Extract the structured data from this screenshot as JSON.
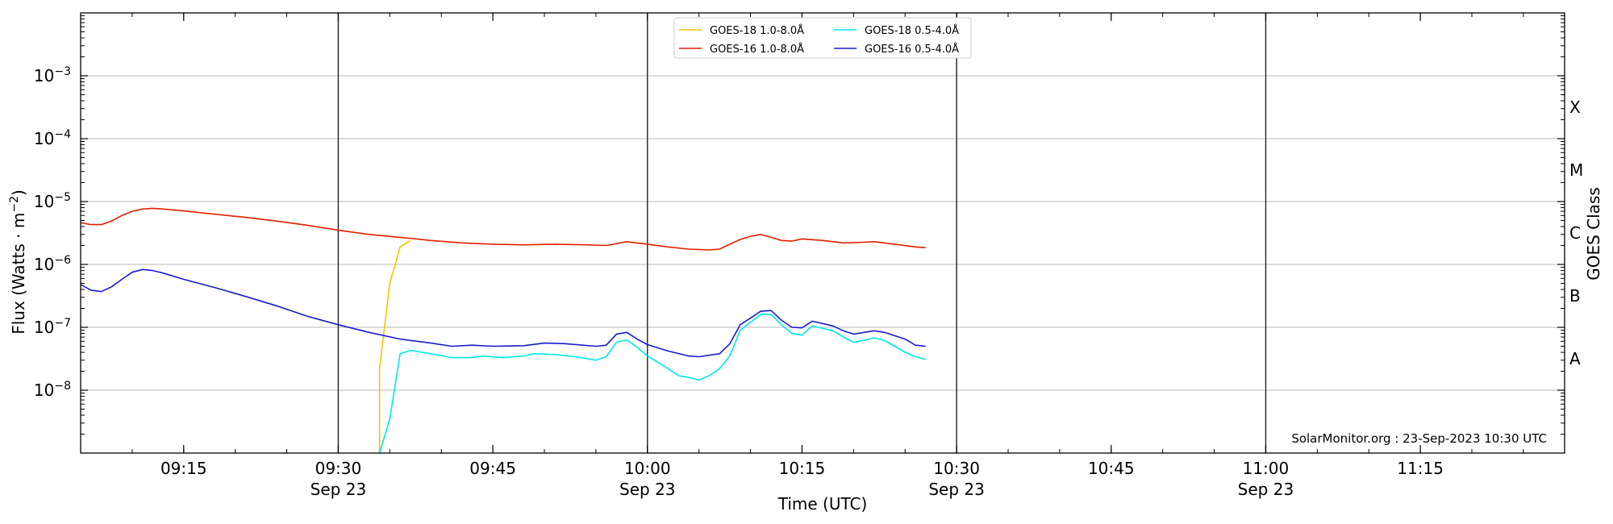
{
  "chart_data": {
    "type": "line",
    "title": "",
    "xlabel": "Time (UTC)",
    "ylabel": "Flux (Watts · m",
    "ylabel_exponent": "−2",
    "ylabel_suffix": ")",
    "y2label": "GOES Class",
    "yscale": "log",
    "ylim": [
      1e-09,
      0.01
    ],
    "xlim": [
      "09:05",
      "11:29"
    ],
    "yticks": [
      {
        "value": 1e-08,
        "mantissa": "10",
        "exp": "−8"
      },
      {
        "value": 1e-07,
        "mantissa": "10",
        "exp": "−7"
      },
      {
        "value": 1e-06,
        "mantissa": "10",
        "exp": "−6"
      },
      {
        "value": 1e-05,
        "mantissa": "10",
        "exp": "−5"
      },
      {
        "value": 0.0001,
        "mantissa": "10",
        "exp": "−4"
      },
      {
        "value": 0.001,
        "mantissa": "10",
        "exp": "−3"
      }
    ],
    "xticks": [
      {
        "time": "09:15",
        "label": "09:15",
        "date": ""
      },
      {
        "time": "09:30",
        "label": "09:30",
        "date": "Sep 23"
      },
      {
        "time": "09:45",
        "label": "09:45",
        "date": ""
      },
      {
        "time": "10:00",
        "label": "10:00",
        "date": "Sep 23"
      },
      {
        "time": "10:15",
        "label": "10:15",
        "date": ""
      },
      {
        "time": "10:30",
        "label": "10:30",
        "date": "Sep 23"
      },
      {
        "time": "10:45",
        "label": "10:45",
        "date": ""
      },
      {
        "time": "11:00",
        "label": "11:00",
        "date": "Sep 23"
      },
      {
        "time": "11:15",
        "label": "11:15",
        "date": ""
      }
    ],
    "vertical_lines": [
      "09:30",
      "10:00",
      "10:30",
      "11:00"
    ],
    "goes_classes": [
      {
        "label": "A",
        "value": 3.16e-08
      },
      {
        "label": "B",
        "value": 3.16e-07
      },
      {
        "label": "C",
        "value": 3.16e-06
      },
      {
        "label": "M",
        "value": 3.16e-05
      },
      {
        "label": "X",
        "value": 0.000316
      }
    ],
    "grid": true,
    "legend_position": "top-center",
    "credit": "SolarMonitor.org : 23-Sep-2023 10:30 UTC",
    "series": [
      {
        "name": "GOES-18 1.0-8.0Å",
        "color": "#f5c400",
        "points": [
          [
            "09:34",
            "1e-9"
          ],
          [
            "09:34",
            "2.2e-8"
          ],
          [
            "09:35",
            "5e-7"
          ],
          [
            "09:36",
            "1.9e-6"
          ],
          [
            "09:37",
            "2.4e-6"
          ]
        ]
      },
      {
        "name": "GOES-16 1.0-8.0Å",
        "color": "#e02000",
        "points": [
          [
            "09:05",
            "4.6e-6"
          ],
          [
            "09:06",
            "4.3e-6"
          ],
          [
            "09:07",
            "4.3e-6"
          ],
          [
            "09:08",
            "4.9e-6"
          ],
          [
            "09:09",
            "6.0e-6"
          ],
          [
            "09:10",
            "7.0e-6"
          ],
          [
            "09:11",
            "7.6e-6"
          ],
          [
            "09:12",
            "7.8e-6"
          ],
          [
            "09:13",
            "7.6e-6"
          ],
          [
            "09:15",
            "7.1e-6"
          ],
          [
            "09:18",
            "6.3e-6"
          ],
          [
            "09:21",
            "5.6e-6"
          ],
          [
            "09:24",
            "4.9e-6"
          ],
          [
            "09:27",
            "4.2e-6"
          ],
          [
            "09:30",
            "3.5e-6"
          ],
          [
            "09:33",
            "3.0e-6"
          ],
          [
            "09:36",
            "2.7e-6"
          ],
          [
            "09:39",
            "2.4e-6"
          ],
          [
            "09:42",
            "2.2e-6"
          ],
          [
            "09:45",
            "2.1e-6"
          ],
          [
            "09:48",
            "2.05e-6"
          ],
          [
            "09:51",
            "2.1e-6"
          ],
          [
            "09:54",
            "2.05e-6"
          ],
          [
            "09:56",
            "2.0e-6"
          ],
          [
            "09:58",
            "2.3e-6"
          ],
          [
            "10:00",
            "2.1e-6"
          ],
          [
            "10:02",
            "1.9e-6"
          ],
          [
            "10:04",
            "1.75e-6"
          ],
          [
            "10:06",
            "1.7e-6"
          ],
          [
            "10:07",
            "1.75e-6"
          ],
          [
            "10:08",
            "2.1e-6"
          ],
          [
            "10:09",
            "2.5e-6"
          ],
          [
            "10:10",
            "2.8e-6"
          ],
          [
            "10:11",
            "3.0e-6"
          ],
          [
            "10:12",
            "2.7e-6"
          ],
          [
            "10:13",
            "2.4e-6"
          ],
          [
            "10:14",
            "2.35e-6"
          ],
          [
            "10:15",
            "2.55e-6"
          ],
          [
            "10:17",
            "2.4e-6"
          ],
          [
            "10:19",
            "2.2e-6"
          ],
          [
            "10:21",
            "2.25e-6"
          ],
          [
            "10:22",
            "2.3e-6"
          ],
          [
            "10:24",
            "2.1e-6"
          ],
          [
            "10:26",
            "1.9e-6"
          ],
          [
            "10:27",
            "1.85e-6"
          ]
        ]
      },
      {
        "name": "GOES-18 0.5-4.0Å",
        "color": "#00e8e8",
        "points": [
          [
            "09:34",
            "1e-9"
          ],
          [
            "09:35",
            "3.5e-9"
          ],
          [
            "09:36",
            "3.8e-8"
          ],
          [
            "09:37",
            "4.3e-8"
          ],
          [
            "09:39",
            "3.8e-8"
          ],
          [
            "09:41",
            "3.3e-8"
          ],
          [
            "09:43",
            "3.3e-8"
          ],
          [
            "09:44",
            "3.5e-8"
          ],
          [
            "09:46",
            "3.3e-8"
          ],
          [
            "09:48",
            "3.5e-8"
          ],
          [
            "09:49",
            "3.8e-8"
          ],
          [
            "09:51",
            "3.7e-8"
          ],
          [
            "09:53",
            "3.4e-8"
          ],
          [
            "09:55",
            "3.0e-8"
          ],
          [
            "09:56",
            "3.4e-8"
          ],
          [
            "09:57",
            "5.8e-8"
          ],
          [
            "09:58",
            "6.3e-8"
          ],
          [
            "09:59",
            "4.8e-8"
          ],
          [
            "10:00",
            "3.5e-8"
          ],
          [
            "10:02",
            "2.2e-8"
          ],
          [
            "10:03",
            "1.7e-8"
          ],
          [
            "10:04",
            "1.6e-8"
          ],
          [
            "10:05",
            "1.45e-8"
          ],
          [
            "10:06",
            "1.7e-8"
          ],
          [
            "10:07",
            "2.2e-8"
          ],
          [
            "10:08",
            "3.5e-8"
          ],
          [
            "10:09",
            "9.0e-8"
          ],
          [
            "10:10",
            "1.2e-7"
          ],
          [
            "10:11",
            "1.6e-7"
          ],
          [
            "10:12",
            "1.6e-7"
          ],
          [
            "10:13",
            "1.1e-7"
          ],
          [
            "10:14",
            "8.0e-8"
          ],
          [
            "10:15",
            "7.5e-8"
          ],
          [
            "10:16",
            "1.05e-7"
          ],
          [
            "10:18",
            "8.8e-8"
          ],
          [
            "10:19",
            "7.0e-8"
          ],
          [
            "10:20",
            "5.8e-8"
          ],
          [
            "10:21",
            "6.2e-8"
          ],
          [
            "10:22",
            "6.8e-8"
          ],
          [
            "10:23",
            "6.2e-8"
          ],
          [
            "10:24",
            "5.0e-8"
          ],
          [
            "10:25",
            "4.0e-8"
          ],
          [
            "10:26",
            "3.4e-8"
          ],
          [
            "10:27",
            "3.1e-8"
          ]
        ]
      },
      {
        "name": "GOES-16 0.5-4.0Å",
        "color": "#1a1acc",
        "points": [
          [
            "09:05",
            "4.8e-7"
          ],
          [
            "09:06",
            "3.9e-7"
          ],
          [
            "09:07",
            "3.7e-7"
          ],
          [
            "09:08",
            "4.4e-7"
          ],
          [
            "09:09",
            "5.8e-7"
          ],
          [
            "09:10",
            "7.5e-7"
          ],
          [
            "09:11",
            "8.3e-7"
          ],
          [
            "09:12",
            "8.0e-7"
          ],
          [
            "09:13",
            "7.3e-7"
          ],
          [
            "09:15",
            "5.8e-7"
          ],
          [
            "09:18",
            "4.3e-7"
          ],
          [
            "09:21",
            "3.1e-7"
          ],
          [
            "09:24",
            "2.2e-7"
          ],
          [
            "09:27",
            "1.5e-7"
          ],
          [
            "09:30",
            "1.1e-7"
          ],
          [
            "09:33",
            "8.3e-8"
          ],
          [
            "09:36",
            "6.5e-8"
          ],
          [
            "09:39",
            "5.6e-8"
          ],
          [
            "09:41",
            "5.0e-8"
          ],
          [
            "09:43",
            "5.2e-8"
          ],
          [
            "09:45",
            "5.0e-8"
          ],
          [
            "09:48",
            "5.1e-8"
          ],
          [
            "09:50",
            "5.6e-8"
          ],
          [
            "09:52",
            "5.5e-8"
          ],
          [
            "09:55",
            "5.0e-8"
          ],
          [
            "09:56",
            "5.2e-8"
          ],
          [
            "09:57",
            "7.8e-8"
          ],
          [
            "09:58",
            "8.3e-8"
          ],
          [
            "09:59",
            "6.5e-8"
          ],
          [
            "10:00",
            "5.3e-8"
          ],
          [
            "10:02",
            "4.2e-8"
          ],
          [
            "10:04",
            "3.5e-8"
          ],
          [
            "10:05",
            "3.4e-8"
          ],
          [
            "10:07",
            "3.8e-8"
          ],
          [
            "10:08",
            "5.5e-8"
          ],
          [
            "10:09",
            "1.1e-7"
          ],
          [
            "10:10",
            "1.4e-7"
          ],
          [
            "10:11",
            "1.8e-7"
          ],
          [
            "10:12",
            "1.85e-7"
          ],
          [
            "10:13",
            "1.3e-7"
          ],
          [
            "10:14",
            "1.0e-7"
          ],
          [
            "10:15",
            "9.8e-8"
          ],
          [
            "10:16",
            "1.25e-7"
          ],
          [
            "10:18",
            "1.05e-7"
          ],
          [
            "10:19",
            "8.8e-8"
          ],
          [
            "10:20",
            "7.8e-8"
          ],
          [
            "10:22",
            "8.8e-8"
          ],
          [
            "10:23",
            "8.3e-8"
          ],
          [
            "10:25",
            "6.5e-8"
          ],
          [
            "10:26",
            "5.2e-8"
          ],
          [
            "10:27",
            "5.0e-8"
          ]
        ]
      }
    ]
  }
}
